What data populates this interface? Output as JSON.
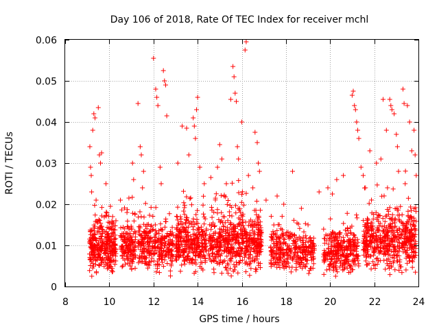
{
  "chart_data": {
    "type": "scatter",
    "title": "Day 106 of 2018, Rate Of TEC Index for receiver mchl",
    "xlabel": "GPS time / hours",
    "ylabel": "ROTI / TECUs",
    "xlim": [
      8,
      24
    ],
    "ylim": [
      0,
      0.06
    ],
    "xticks": [
      "8",
      "10",
      "12",
      "14",
      "16",
      "18",
      "20",
      "22",
      "24"
    ],
    "yticks": [
      "0",
      "0.01",
      "0.02",
      "0.03",
      "0.04",
      "0.05",
      "0.06"
    ],
    "grid": true,
    "marker": "+",
    "color": "#ff0000",
    "series_name": "ROTI",
    "clusters": [
      {
        "x0": 9.1,
        "x1": 10.3,
        "base": 0.0095,
        "spread": 0.005,
        "n": 320
      },
      {
        "x0": 10.5,
        "x1": 11.2,
        "base": 0.0095,
        "spread": 0.0045,
        "n": 150
      },
      {
        "x0": 11.3,
        "x1": 12.9,
        "base": 0.0095,
        "spread": 0.005,
        "n": 300
      },
      {
        "x0": 13.0,
        "x1": 14.4,
        "base": 0.0105,
        "spread": 0.0055,
        "n": 320
      },
      {
        "x0": 14.5,
        "x1": 16.9,
        "base": 0.0105,
        "spread": 0.006,
        "n": 520
      },
      {
        "x0": 17.3,
        "x1": 19.3,
        "base": 0.0085,
        "spread": 0.004,
        "n": 320
      },
      {
        "x0": 19.7,
        "x1": 21.3,
        "base": 0.0085,
        "spread": 0.0045,
        "n": 300
      },
      {
        "x0": 21.5,
        "x1": 23.9,
        "base": 0.011,
        "spread": 0.006,
        "n": 520
      }
    ],
    "points": [
      [
        9.12,
        0.034
      ],
      [
        9.15,
        0.029
      ],
      [
        9.18,
        0.027
      ],
      [
        9.25,
        0.038
      ],
      [
        9.3,
        0.042
      ],
      [
        9.35,
        0.041
      ],
      [
        9.5,
        0.0435
      ],
      [
        9.55,
        0.032
      ],
      [
        9.6,
        0.03
      ],
      [
        9.65,
        0.0325
      ],
      [
        9.2,
        0.023
      ],
      [
        9.4,
        0.021
      ],
      [
        9.85,
        0.025
      ],
      [
        10.05,
        0.0195
      ],
      [
        10.15,
        0.017
      ],
      [
        10.3,
        0.016
      ],
      [
        10.5,
        0.021
      ],
      [
        10.8,
        0.018
      ],
      [
        11.05,
        0.03
      ],
      [
        11.1,
        0.026
      ],
      [
        11.3,
        0.0445
      ],
      [
        11.4,
        0.034
      ],
      [
        11.45,
        0.032
      ],
      [
        11.55,
        0.028
      ],
      [
        11.5,
        0.024
      ],
      [
        12.0,
        0.0555
      ],
      [
        12.1,
        0.048
      ],
      [
        12.15,
        0.046
      ],
      [
        12.2,
        0.044
      ],
      [
        12.45,
        0.0525
      ],
      [
        12.5,
        0.05
      ],
      [
        12.55,
        0.049
      ],
      [
        12.6,
        0.0415
      ],
      [
        12.3,
        0.029
      ],
      [
        12.35,
        0.025
      ],
      [
        13.1,
        0.03
      ],
      [
        13.3,
        0.039
      ],
      [
        13.5,
        0.0385
      ],
      [
        13.6,
        0.032
      ],
      [
        13.8,
        0.041
      ],
      [
        13.85,
        0.039
      ],
      [
        13.95,
        0.043
      ],
      [
        14.0,
        0.046
      ],
      [
        14.1,
        0.029
      ],
      [
        14.3,
        0.025
      ],
      [
        13.9,
        0.036
      ],
      [
        14.6,
        0.0265
      ],
      [
        14.9,
        0.029
      ],
      [
        15.0,
        0.0345
      ],
      [
        15.1,
        0.031
      ],
      [
        15.3,
        0.025
      ],
      [
        15.5,
        0.0455
      ],
      [
        15.6,
        0.0535
      ],
      [
        15.65,
        0.051
      ],
      [
        15.7,
        0.047
      ],
      [
        15.75,
        0.045
      ],
      [
        15.8,
        0.034
      ],
      [
        15.85,
        0.031
      ],
      [
        16.0,
        0.04
      ],
      [
        16.15,
        0.0575
      ],
      [
        16.2,
        0.0595
      ],
      [
        16.3,
        0.027
      ],
      [
        16.5,
        0.024
      ],
      [
        16.6,
        0.0375
      ],
      [
        16.7,
        0.035
      ],
      [
        16.75,
        0.03
      ],
      [
        16.8,
        0.028
      ],
      [
        17.1,
        0.021
      ],
      [
        17.6,
        0.022
      ],
      [
        17.9,
        0.02
      ],
      [
        18.3,
        0.028
      ],
      [
        18.7,
        0.019
      ],
      [
        19.0,
        0.015
      ],
      [
        19.5,
        0.023
      ],
      [
        19.9,
        0.024
      ],
      [
        20.1,
        0.0225
      ],
      [
        20.3,
        0.026
      ],
      [
        20.6,
        0.027
      ],
      [
        21.0,
        0.0465
      ],
      [
        21.05,
        0.0475
      ],
      [
        21.1,
        0.044
      ],
      [
        21.15,
        0.043
      ],
      [
        21.2,
        0.04
      ],
      [
        21.25,
        0.038
      ],
      [
        21.3,
        0.036
      ],
      [
        21.4,
        0.029
      ],
      [
        21.5,
        0.027
      ],
      [
        21.6,
        0.024
      ],
      [
        21.8,
        0.033
      ],
      [
        22.1,
        0.03
      ],
      [
        22.3,
        0.031
      ],
      [
        22.4,
        0.0455
      ],
      [
        22.55,
        0.038
      ],
      [
        22.7,
        0.0455
      ],
      [
        22.75,
        0.044
      ],
      [
        22.8,
        0.043
      ],
      [
        22.9,
        0.042
      ],
      [
        23.0,
        0.037
      ],
      [
        23.05,
        0.034
      ],
      [
        23.1,
        0.028
      ],
      [
        23.3,
        0.048
      ],
      [
        23.35,
        0.0445
      ],
      [
        23.5,
        0.044
      ],
      [
        23.6,
        0.04
      ],
      [
        23.7,
        0.033
      ],
      [
        23.8,
        0.038
      ],
      [
        23.85,
        0.032
      ],
      [
        23.9,
        0.027
      ],
      [
        23.4,
        0.025
      ],
      [
        22.6,
        0.024
      ]
    ]
  }
}
